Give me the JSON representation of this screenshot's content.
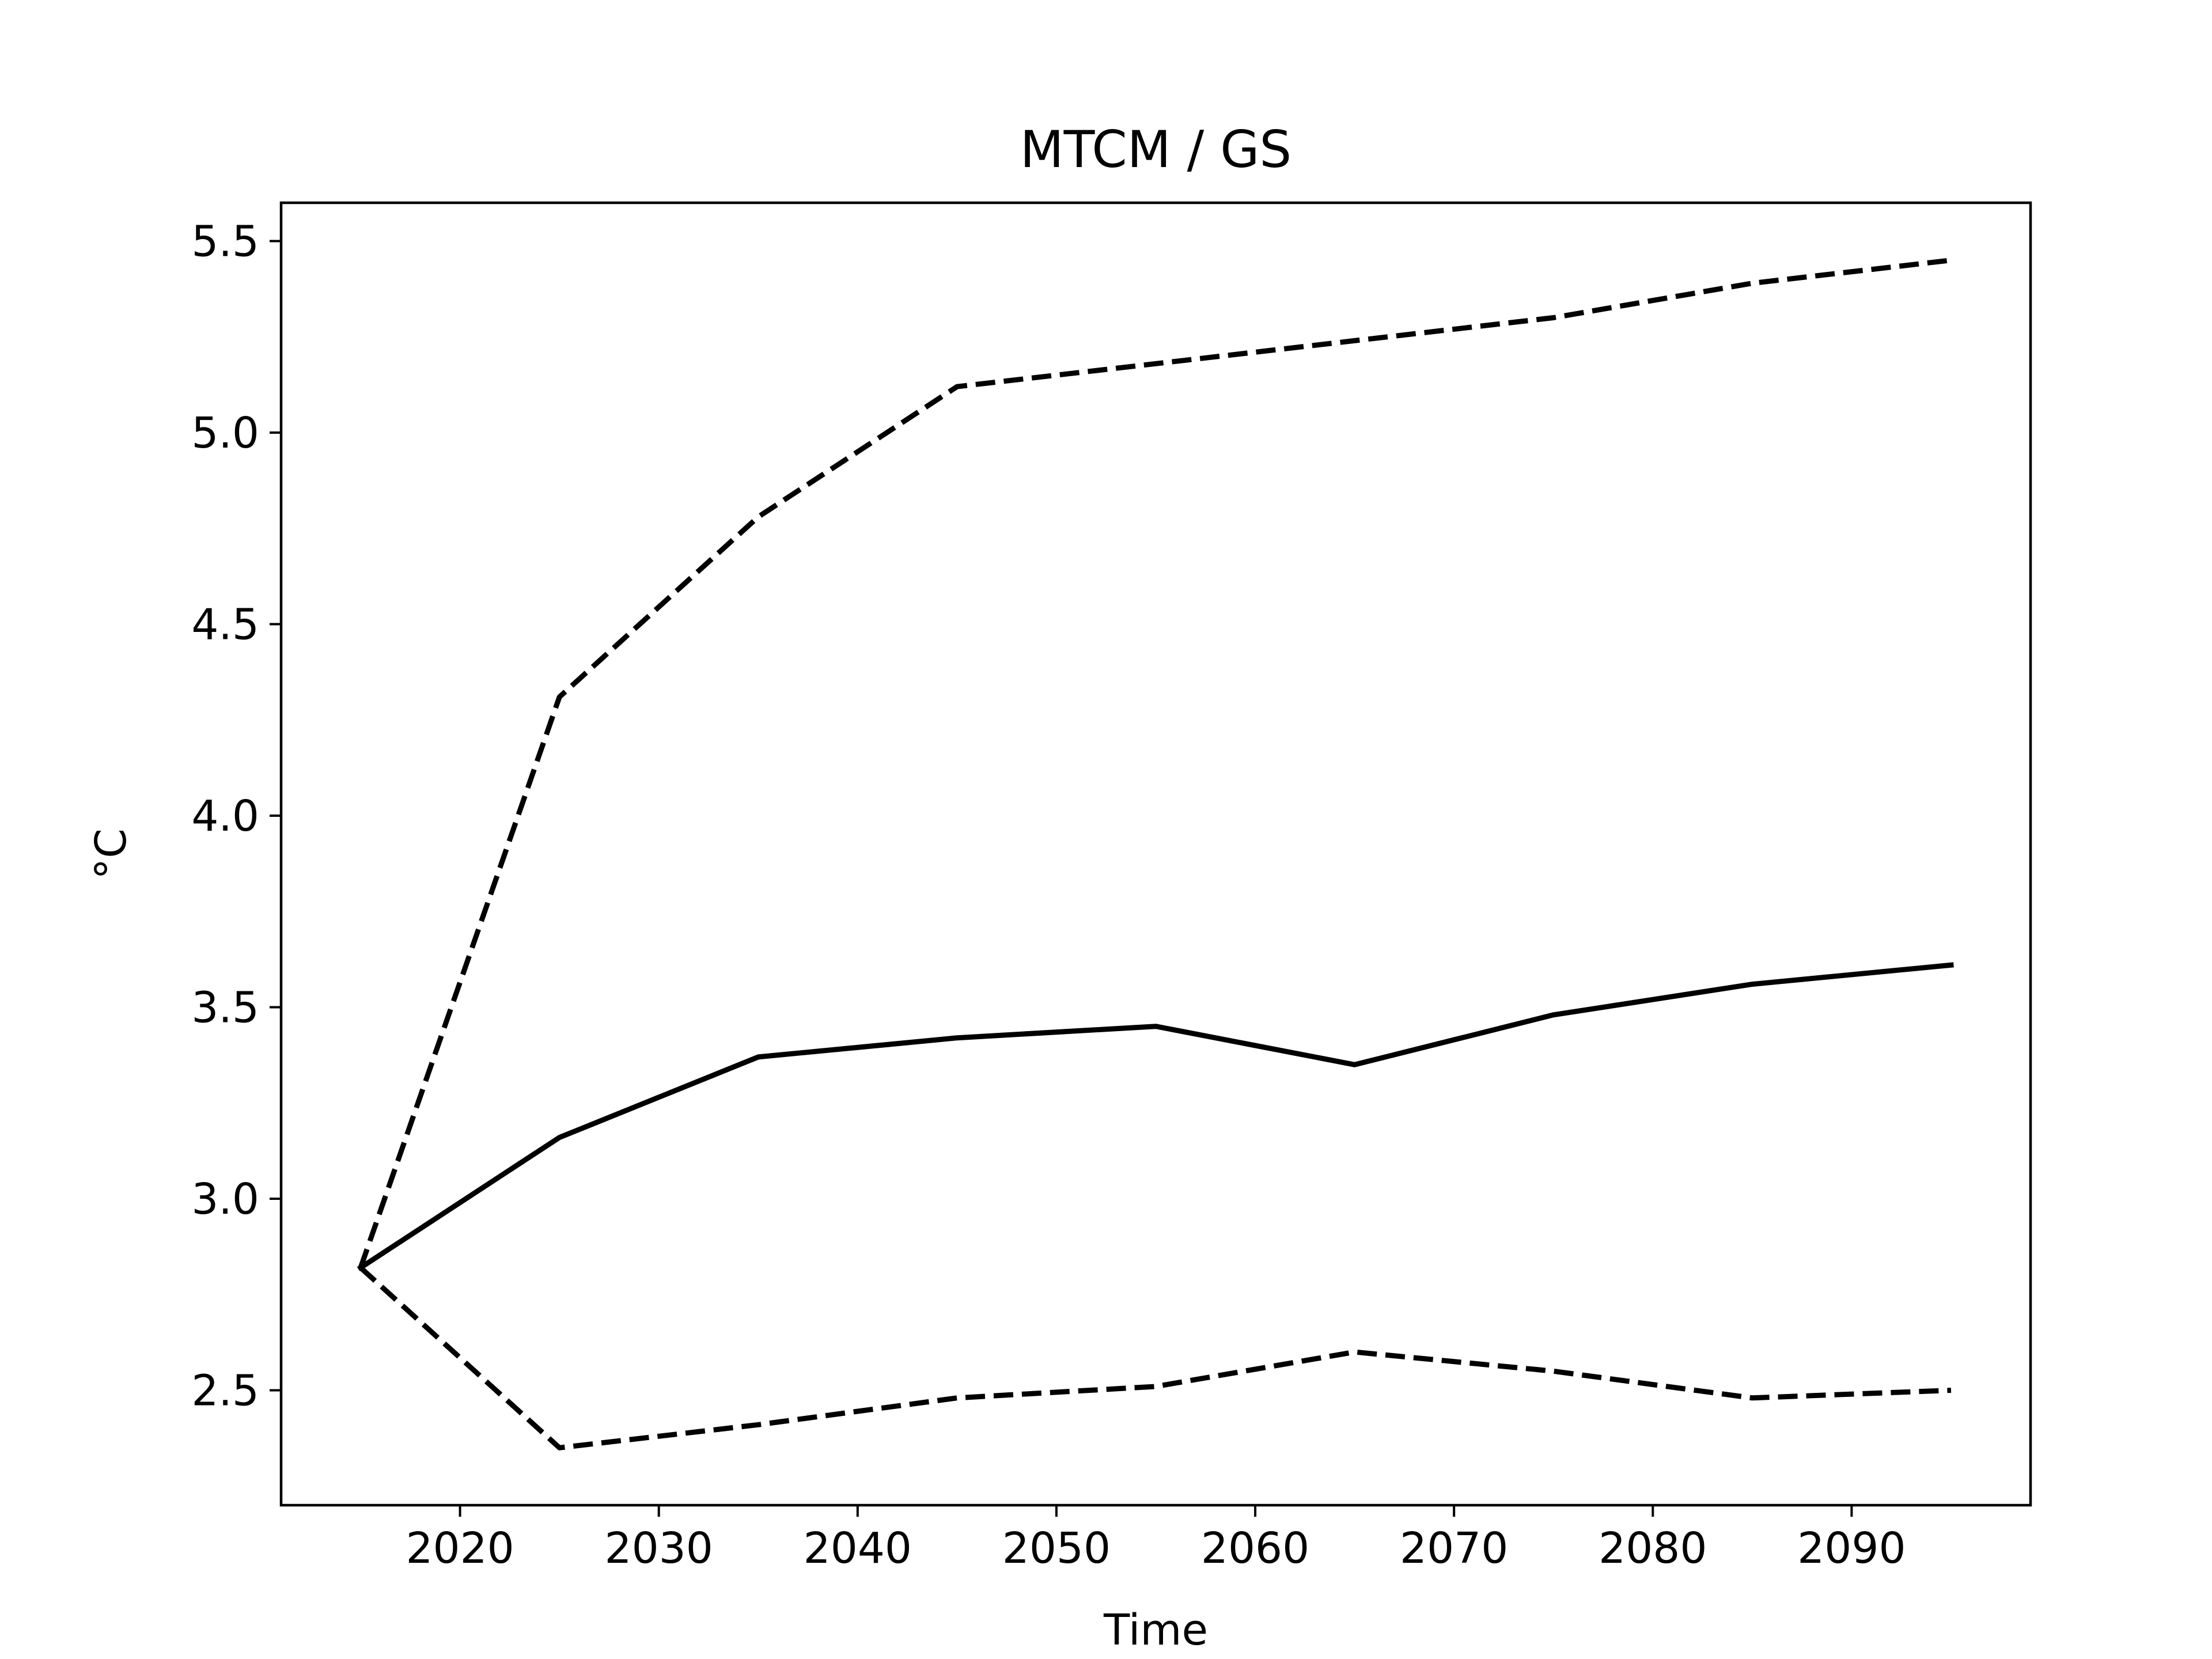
{
  "chart_data": {
    "type": "line",
    "title": "MTCM / GS",
    "xlabel": "Time",
    "ylabel": "°C",
    "xlim": [
      2011,
      2099
    ],
    "ylim": [
      2.2,
      5.6
    ],
    "xticks": [
      2020,
      2030,
      2040,
      2050,
      2060,
      2070,
      2080,
      2090
    ],
    "xtick_labels": [
      "2020",
      "2030",
      "2040",
      "2050",
      "2060",
      "2070",
      "2080",
      "2090"
    ],
    "yticks": [
      2.5,
      3.0,
      3.5,
      4.0,
      4.5,
      5.0,
      5.5
    ],
    "ytick_labels": [
      "2.5",
      "3.0",
      "3.5",
      "4.0",
      "4.5",
      "5.0",
      "5.5"
    ],
    "grid": false,
    "legend": "none",
    "x": [
      2015,
      2025,
      2035,
      2045,
      2055,
      2065,
      2075,
      2085,
      2095
    ],
    "series": [
      {
        "style": "solid",
        "color": "#000000",
        "values": [
          2.82,
          3.16,
          3.37,
          3.42,
          3.45,
          3.35,
          3.48,
          3.56,
          3.61
        ]
      },
      {
        "style": "dashed",
        "color": "#000000",
        "values": [
          2.82,
          4.31,
          4.78,
          5.12,
          5.18,
          5.24,
          5.3,
          5.39,
          5.45
        ]
      },
      {
        "style": "dashed",
        "color": "#000000",
        "values": [
          2.82,
          2.35,
          2.41,
          2.48,
          2.51,
          2.6,
          2.55,
          2.48,
          2.5
        ]
      }
    ]
  }
}
